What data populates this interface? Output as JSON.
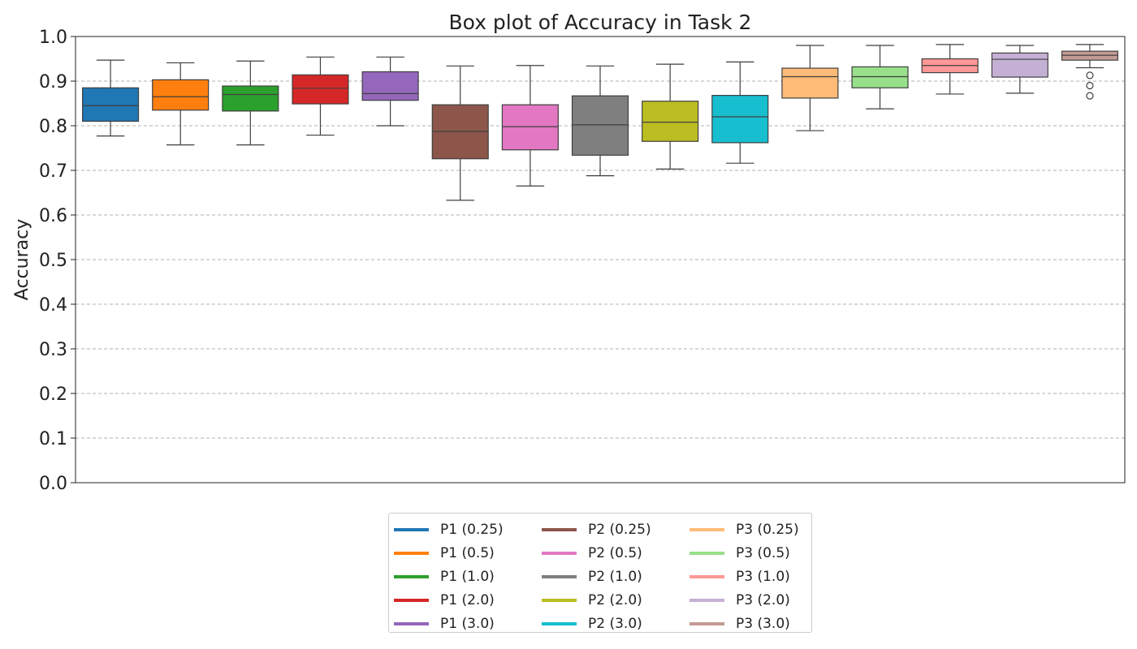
{
  "chart_data": {
    "type": "box",
    "title": "Box plot of Accuracy in Task 2",
    "xlabel": "",
    "ylabel": "Accuracy",
    "ylim": [
      0.0,
      1.0
    ],
    "yticks": [
      "0.0",
      "0.1",
      "0.2",
      "0.3",
      "0.4",
      "0.5",
      "0.6",
      "0.7",
      "0.8",
      "0.9",
      "1.0"
    ],
    "grid": "y-dashed",
    "legend_position": "bottom-center",
    "series": [
      {
        "name": "P1 (0.25)",
        "color": "#1f77b4",
        "whisker_low": 0.777,
        "q1": 0.81,
        "median": 0.845,
        "q3": 0.885,
        "whisker_high": 0.947,
        "outliers": []
      },
      {
        "name": "P1 (0.5)",
        "color": "#ff7f0e",
        "whisker_low": 0.757,
        "q1": 0.835,
        "median": 0.865,
        "q3": 0.903,
        "whisker_high": 0.941,
        "outliers": []
      },
      {
        "name": "P1 (1.0)",
        "color": "#2ca02c",
        "whisker_low": 0.757,
        "q1": 0.833,
        "median": 0.87,
        "q3": 0.889,
        "whisker_high": 0.945,
        "outliers": []
      },
      {
        "name": "P1 (2.0)",
        "color": "#d62728",
        "whisker_low": 0.779,
        "q1": 0.849,
        "median": 0.884,
        "q3": 0.914,
        "whisker_high": 0.954,
        "outliers": []
      },
      {
        "name": "P1 (3.0)",
        "color": "#9467bd",
        "whisker_low": 0.8,
        "q1": 0.857,
        "median": 0.872,
        "q3": 0.921,
        "whisker_high": 0.954,
        "outliers": []
      },
      {
        "name": "P2 (0.25)",
        "color": "#8c564b",
        "whisker_low": 0.633,
        "q1": 0.726,
        "median": 0.787,
        "q3": 0.847,
        "whisker_high": 0.934,
        "outliers": []
      },
      {
        "name": "P2 (0.5)",
        "color": "#e377c2",
        "whisker_low": 0.665,
        "q1": 0.746,
        "median": 0.798,
        "q3": 0.847,
        "whisker_high": 0.935,
        "outliers": []
      },
      {
        "name": "P2 (1.0)",
        "color": "#7f7f7f",
        "whisker_low": 0.688,
        "q1": 0.734,
        "median": 0.802,
        "q3": 0.867,
        "whisker_high": 0.934,
        "outliers": []
      },
      {
        "name": "P2 (2.0)",
        "color": "#bcbd22",
        "whisker_low": 0.703,
        "q1": 0.765,
        "median": 0.808,
        "q3": 0.855,
        "whisker_high": 0.938,
        "outliers": []
      },
      {
        "name": "P2 (3.0)",
        "color": "#17becf",
        "whisker_low": 0.716,
        "q1": 0.762,
        "median": 0.82,
        "q3": 0.868,
        "whisker_high": 0.943,
        "outliers": []
      },
      {
        "name": "P3 (0.25)",
        "color": "#ffbb78",
        "whisker_low": 0.789,
        "q1": 0.862,
        "median": 0.91,
        "q3": 0.929,
        "whisker_high": 0.98,
        "outliers": []
      },
      {
        "name": "P3 (0.5)",
        "color": "#98df8a",
        "whisker_low": 0.838,
        "q1": 0.885,
        "median": 0.91,
        "q3": 0.932,
        "whisker_high": 0.98,
        "outliers": []
      },
      {
        "name": "P3 (1.0)",
        "color": "#ff9896",
        "whisker_low": 0.871,
        "q1": 0.919,
        "median": 0.935,
        "q3": 0.95,
        "whisker_high": 0.982,
        "outliers": []
      },
      {
        "name": "P3 (2.0)",
        "color": "#c5b0d5",
        "whisker_low": 0.873,
        "q1": 0.909,
        "median": 0.949,
        "q3": 0.963,
        "whisker_high": 0.98,
        "outliers": []
      },
      {
        "name": "P3 (3.0)",
        "color": "#c49c94",
        "whisker_low": 0.93,
        "q1": 0.947,
        "median": 0.958,
        "q3": 0.967,
        "whisker_high": 0.982,
        "outliers": [
          0.913,
          0.89,
          0.867
        ]
      }
    ]
  }
}
